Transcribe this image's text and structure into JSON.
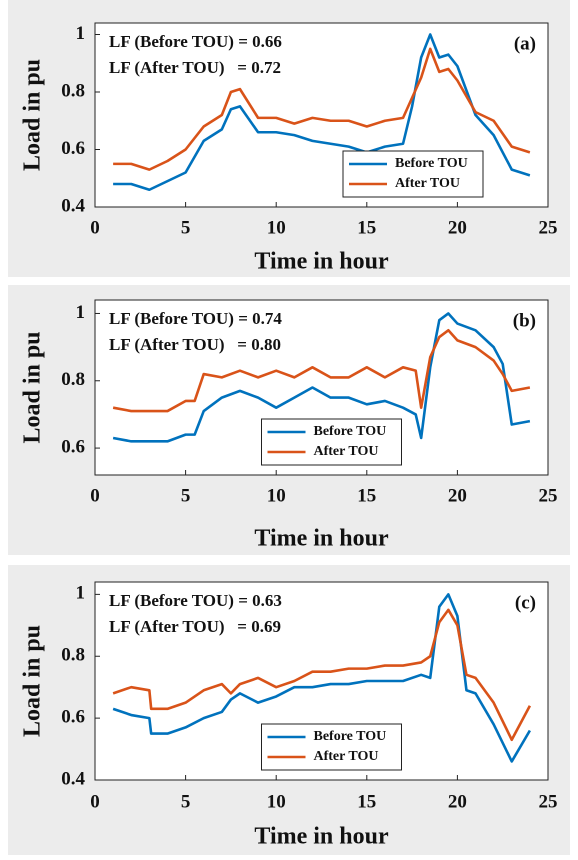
{
  "chart_data": [
    {
      "type": "line",
      "panel_label": "(a)",
      "annotations": [
        "LF (Before TOU) = 0.66",
        "LF (After TOU)   = 0.72"
      ],
      "x_label": "Time in hour",
      "y_label": "Load in pu",
      "xlim": [
        0,
        25
      ],
      "xticks": [
        0,
        5,
        10,
        15,
        20,
        25
      ],
      "ylim": [
        0.4,
        1.04
      ],
      "yticks": [
        0.4,
        0.6,
        0.8,
        1
      ],
      "legend": "lower right",
      "x": [
        1,
        2,
        3,
        4,
        5,
        6,
        7,
        7.5,
        8,
        9,
        10,
        11,
        12,
        13,
        14,
        15,
        16,
        17,
        17.5,
        18,
        18.5,
        19,
        19.5,
        20,
        21,
        22,
        23,
        24
      ],
      "series": [
        {
          "name": "Before TOU",
          "color": "#0072bd",
          "values": [
            0.48,
            0.48,
            0.46,
            0.49,
            0.52,
            0.63,
            0.67,
            0.74,
            0.75,
            0.66,
            0.66,
            0.65,
            0.63,
            0.62,
            0.61,
            0.59,
            0.61,
            0.62,
            0.75,
            0.92,
            1.0,
            0.92,
            0.93,
            0.89,
            0.72,
            0.65,
            0.53,
            0.51
          ]
        },
        {
          "name": "After TOU",
          "color": "#d95319",
          "values": [
            0.55,
            0.55,
            0.53,
            0.56,
            0.6,
            0.68,
            0.72,
            0.8,
            0.81,
            0.71,
            0.71,
            0.69,
            0.71,
            0.7,
            0.7,
            0.68,
            0.7,
            0.71,
            0.78,
            0.85,
            0.95,
            0.87,
            0.88,
            0.84,
            0.73,
            0.7,
            0.61,
            0.59
          ]
        }
      ]
    },
    {
      "type": "line",
      "panel_label": "(b)",
      "annotations": [
        "LF (Before TOU) = 0.74",
        "LF (After TOU)   = 0.80"
      ],
      "x_label": "Time in hour",
      "y_label": "Load in pu",
      "xlim": [
        0,
        25
      ],
      "xticks": [
        0,
        5,
        10,
        15,
        20,
        25
      ],
      "ylim": [
        0.52,
        1.04
      ],
      "yticks": [
        0.6,
        0.8,
        1
      ],
      "legend": "lower center",
      "x": [
        1,
        2,
        3,
        4,
        5,
        5.5,
        6,
        7,
        8,
        9,
        10,
        11,
        12,
        13,
        14,
        15,
        16,
        17,
        17.7,
        18,
        18.5,
        19,
        19.5,
        20,
        21,
        22,
        22.5,
        23,
        24
      ],
      "series": [
        {
          "name": "Before TOU",
          "color": "#0072bd",
          "values": [
            0.63,
            0.62,
            0.62,
            0.62,
            0.64,
            0.64,
            0.71,
            0.75,
            0.77,
            0.75,
            0.72,
            0.75,
            0.78,
            0.75,
            0.75,
            0.73,
            0.74,
            0.72,
            0.7,
            0.63,
            0.84,
            0.98,
            1.0,
            0.97,
            0.95,
            0.9,
            0.85,
            0.67,
            0.68
          ]
        },
        {
          "name": "After TOU",
          "color": "#d95319",
          "values": [
            0.72,
            0.71,
            0.71,
            0.71,
            0.74,
            0.74,
            0.82,
            0.81,
            0.83,
            0.81,
            0.83,
            0.81,
            0.84,
            0.81,
            0.81,
            0.84,
            0.81,
            0.84,
            0.83,
            0.72,
            0.87,
            0.93,
            0.95,
            0.92,
            0.9,
            0.86,
            0.82,
            0.77,
            0.78
          ]
        }
      ]
    },
    {
      "type": "line",
      "panel_label": "(c)",
      "annotations": [
        "LF (Before TOU) = 0.63",
        "LF (After TOU)   = 0.69"
      ],
      "x_label": "Time in hour",
      "y_label": "Load in pu",
      "xlim": [
        0,
        25
      ],
      "xticks": [
        0,
        5,
        10,
        15,
        20,
        25
      ],
      "ylim": [
        0.4,
        1.04
      ],
      "yticks": [
        0.4,
        0.6,
        0.8,
        1
      ],
      "legend": "lower center",
      "x": [
        1,
        2,
        3,
        3.1,
        4,
        5,
        6,
        7,
        7.5,
        8,
        9,
        10,
        11,
        12,
        13,
        14,
        15,
        16,
        17,
        18,
        18.5,
        19,
        19.5,
        20,
        20.5,
        21,
        22,
        23,
        24
      ],
      "series": [
        {
          "name": "Before TOU",
          "color": "#0072bd",
          "values": [
            0.63,
            0.61,
            0.6,
            0.55,
            0.55,
            0.57,
            0.6,
            0.62,
            0.66,
            0.68,
            0.65,
            0.67,
            0.7,
            0.7,
            0.71,
            0.71,
            0.72,
            0.72,
            0.72,
            0.74,
            0.73,
            0.96,
            1.0,
            0.93,
            0.69,
            0.68,
            0.58,
            0.46,
            0.56
          ]
        },
        {
          "name": "After TOU",
          "color": "#d95319",
          "values": [
            0.68,
            0.7,
            0.69,
            0.63,
            0.63,
            0.65,
            0.69,
            0.71,
            0.68,
            0.71,
            0.73,
            0.7,
            0.72,
            0.75,
            0.75,
            0.76,
            0.76,
            0.77,
            0.77,
            0.78,
            0.8,
            0.91,
            0.95,
            0.9,
            0.74,
            0.73,
            0.65,
            0.53,
            0.64
          ]
        }
      ]
    }
  ]
}
